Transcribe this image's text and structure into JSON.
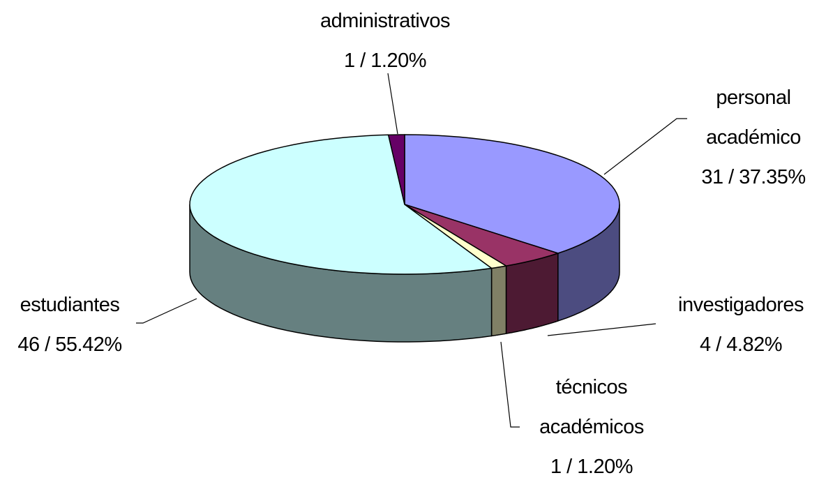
{
  "chart_data": {
    "type": "pie",
    "categories": [
      "personal académico",
      "investigadores",
      "técnicos académicos",
      "estudiantes",
      "administrativos"
    ],
    "values": [
      31,
      4,
      1,
      46,
      1
    ],
    "value_labels": [
      "31 / 37.35%",
      "4 / 4.82%",
      "1 / 1.20%",
      "46 / 55.42%",
      "1 / 1.20%"
    ],
    "colors": [
      "#9999ff",
      "#993366",
      "#ffffcc",
      "#ccffff",
      "#660066"
    ],
    "side_colors": [
      "#4c4c80",
      "#4d1a33",
      "#808066",
      "#668080",
      "#330033"
    ]
  }
}
